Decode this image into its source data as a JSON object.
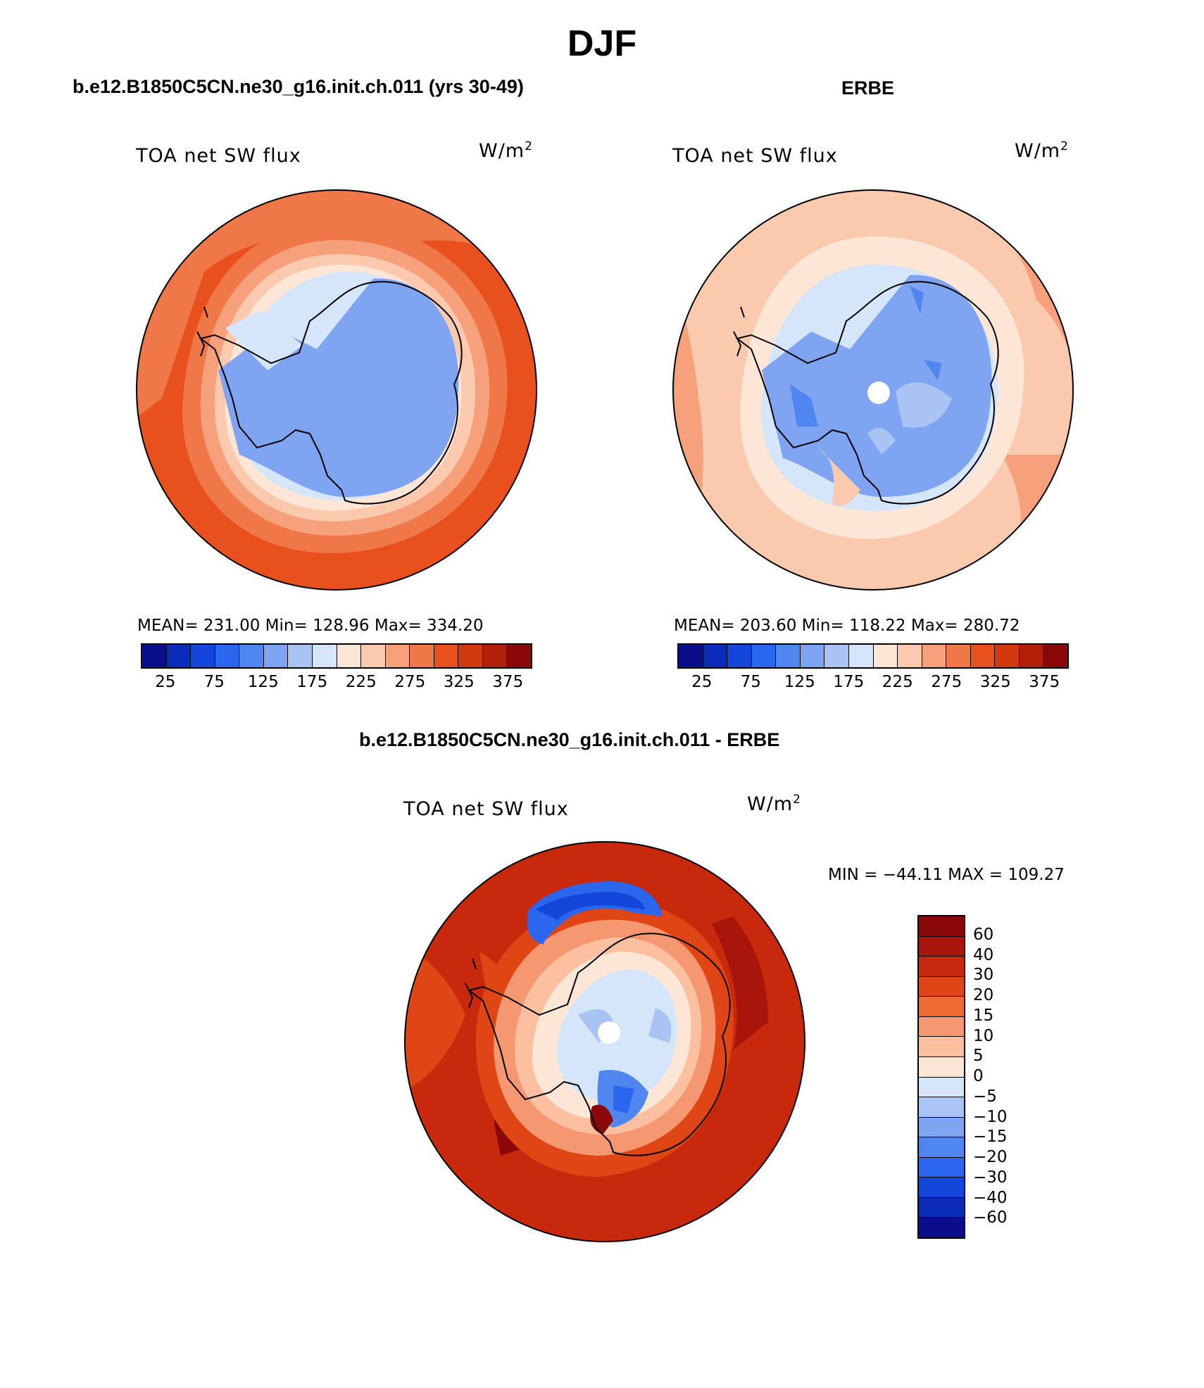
{
  "title": "DJF",
  "panels": {
    "model": {
      "title": "b.e12.B1850C5CN.ne30_g16.init.ch.011 (yrs 30-49)",
      "variable": "TOA net SW flux",
      "units": "W/m",
      "units_sup": "2",
      "stats": "MEAN= 231.00   Min= 128.96   Max= 334.20"
    },
    "obs": {
      "title": "ERBE",
      "variable": "TOA net SW flux",
      "units": "W/m",
      "units_sup": "2",
      "stats": "MEAN= 203.60   Min= 118.22   Max= 280.72"
    },
    "diff": {
      "title": "b.e12.B1850C5CN.ne30_g16.init.ch.011 - ERBE",
      "variable": "TOA net SW flux",
      "units": "W/m",
      "units_sup": "2",
      "stats": "MIN = −44.11  MAX = 109.27"
    }
  },
  "colorbar_abs": {
    "colors": [
      "#0a0e8a",
      "#0b2cb8",
      "#1546dc",
      "#2a66ee",
      "#4f86f0",
      "#7ea4f2",
      "#a9c3f5",
      "#d6e6fa",
      "#fde6d6",
      "#fbc9ad",
      "#f6a07c",
      "#f07848",
      "#e8501e",
      "#d13a0e",
      "#b3200a",
      "#8a0808"
    ],
    "labels": [
      "25",
      "75",
      "125",
      "175",
      "225",
      "275",
      "325",
      "375"
    ]
  },
  "colorbar_diff": {
    "colors": [
      "#8a0808",
      "#a8150a",
      "#c8280b",
      "#df4515",
      "#ee6a35",
      "#f59770",
      "#fcc0a0",
      "#fde6d6",
      "#d6e6fa",
      "#aac4f5",
      "#7fa4f2",
      "#4f86f0",
      "#2a66ee",
      "#1546dc",
      "#0b2cb8",
      "#0a0e8a"
    ],
    "labels": [
      "60",
      "40",
      "30",
      "20",
      "15",
      "10",
      "5",
      "0",
      "−5",
      "−10",
      "−15",
      "−20",
      "−30",
      "−40",
      "−60"
    ]
  }
}
